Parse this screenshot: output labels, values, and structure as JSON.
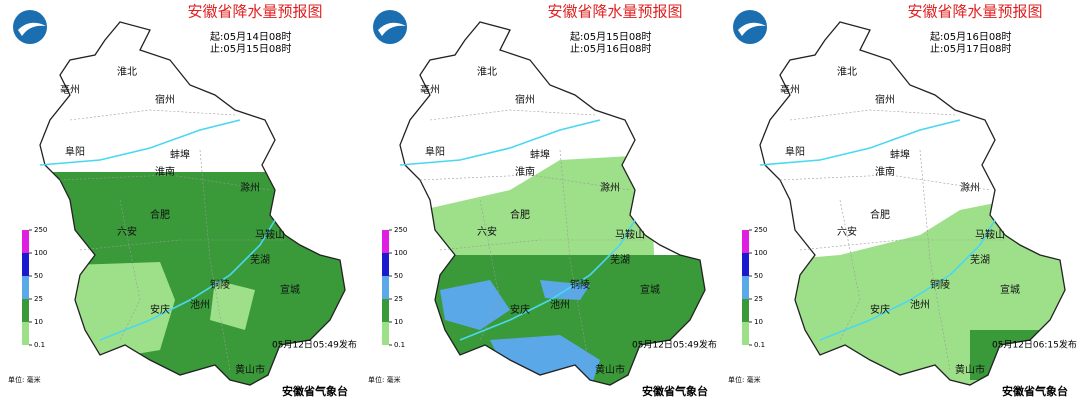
{
  "panels": [
    {
      "title": "安徽省降水量预报图",
      "start": "起:05月14日08时",
      "end": "止:05月15日08时",
      "issued": "05月12日05:49发布",
      "agency": "安徽省气象台"
    },
    {
      "title": "安徽省降水量预报图",
      "start": "起:05月15日08时",
      "end": "止:05月16日08时",
      "issued": "05月12日05:49发布",
      "agency": "安徽省气象台"
    },
    {
      "title": "安徽省降水量预报图",
      "start": "起:05月16日08时",
      "end": "止:05月17日08时",
      "issued": "05月12日06:15发布",
      "agency": "安徽省气象台"
    }
  ],
  "cities": [
    "淮北",
    "亳州",
    "宿州",
    "阜阳",
    "蚌埠",
    "淮南",
    "滁州",
    "合肥",
    "六安",
    "马鞍山",
    "芜湖",
    "铜陵",
    "宣城",
    "安庆",
    "池州",
    "黄山市"
  ],
  "legend": {
    "ticks": [
      250,
      100,
      50,
      25,
      10,
      0.1
    ],
    "colors": [
      "#e020e0",
      "#1a1ad0",
      "#5aa8e8",
      "#3a9a3a",
      "#9ee08a"
    ],
    "unit": "单位: 毫米"
  }
}
